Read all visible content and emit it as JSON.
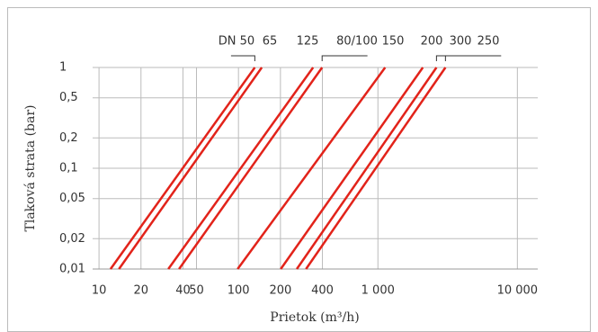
{
  "chart_data": {
    "type": "line",
    "xlabel": "Prietok (m³/h)",
    "ylabel": "Tlaková strata (bar)",
    "xscale": "log",
    "yscale": "log",
    "grid": true,
    "xlim": [
      9,
      14000
    ],
    "ylim": [
      0.01,
      1
    ],
    "xticks": [
      10,
      20,
      40,
      50,
      100,
      200,
      400,
      {
        "value": 1000,
        "label": "1 000"
      },
      {
        "value": 10000,
        "label": "10 000"
      }
    ],
    "yticks": [
      {
        "value": 0.01,
        "label": "0,01"
      },
      {
        "value": 0.02,
        "label": "0,02"
      },
      {
        "value": 0.05,
        "label": "0,05"
      },
      {
        "value": 0.1,
        "label": "0,1"
      },
      {
        "value": 0.2,
        "label": "0,2"
      },
      {
        "value": 0.5,
        "label": "0,5"
      },
      1
    ],
    "series": [
      {
        "name": "DN 50",
        "color": "#e2231a",
        "x": [
          12.1,
          131
        ],
        "values": [
          0.01,
          1
        ]
      },
      {
        "name": "65",
        "color": "#e2231a",
        "x": [
          13.9,
          147
        ],
        "values": [
          0.01,
          1
        ]
      },
      {
        "name": "125",
        "color": "#e2231a",
        "x": [
          31.4,
          343
        ],
        "values": [
          0.01,
          1
        ]
      },
      {
        "name": "80/100",
        "color": "#e2231a",
        "x": [
          37.5,
          398
        ],
        "values": [
          0.01,
          1
        ]
      },
      {
        "name": "150",
        "color": "#e2231a",
        "x": [
          98.6,
          1127
        ],
        "values": [
          0.01,
          1
        ]
      },
      {
        "name": "200",
        "color": "#e2231a",
        "x": [
          201,
          2100
        ],
        "values": [
          0.01,
          1
        ]
      },
      {
        "name": "300",
        "color": "#e2231a",
        "x": [
          262,
          2630
        ],
        "values": [
          0.01,
          1
        ]
      },
      {
        "name": "250",
        "color": "#e2231a",
        "x": [
          305,
          3050
        ],
        "values": [
          0.01,
          1
        ]
      }
    ]
  }
}
